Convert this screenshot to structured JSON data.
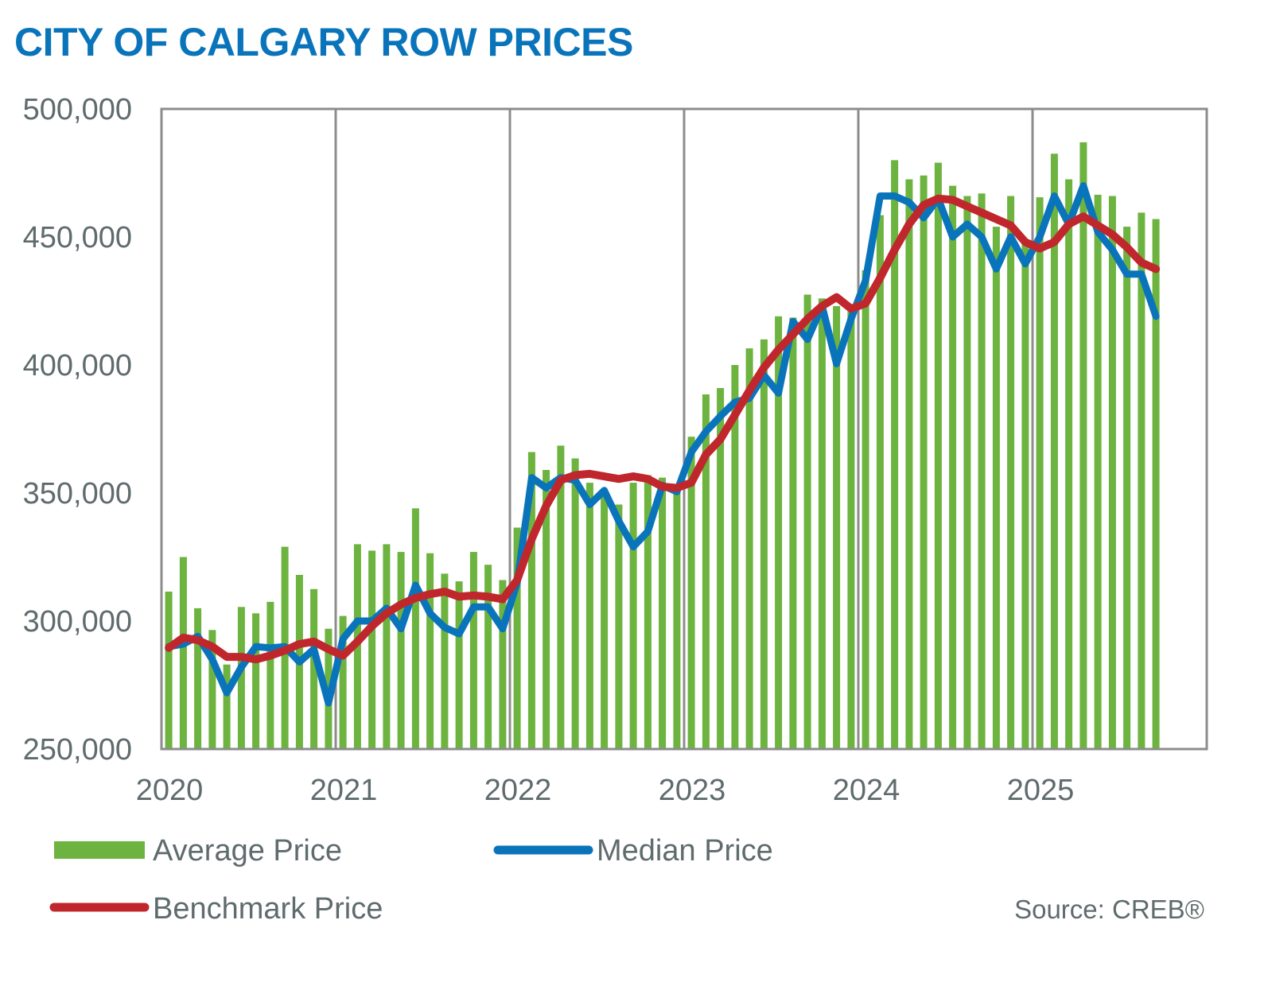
{
  "chart_data": {
    "type": "bar+line",
    "title": "CITY OF CALGARY ROW PRICES",
    "source": "Source: CREB®",
    "ylim": [
      250000,
      500000
    ],
    "y_ticks": [
      "500,000",
      "450,000",
      "400,000",
      "350,000",
      "300,000",
      "250,000"
    ],
    "y_tick_values": [
      500000,
      450000,
      400000,
      350000,
      300000,
      250000
    ],
    "x_ticks": [
      "2020",
      "2021",
      "2022",
      "2023",
      "2024",
      "2025"
    ],
    "start_year": 2020,
    "months_per_year": 12,
    "grid_x": true,
    "series": [
      {
        "name": "Average Price",
        "kind": "bar",
        "color": "#6db33f",
        "values": [
          311500,
          325000,
          305000,
          296500,
          283000,
          305500,
          303000,
          307500,
          329000,
          318000,
          312500,
          297000,
          302000,
          330000,
          327500,
          330000,
          327000,
          344000,
          326500,
          318500,
          315500,
          327000,
          322000,
          316000,
          336500,
          366000,
          359000,
          368500,
          363500,
          354000,
          351000,
          345500,
          354000,
          357000,
          356000,
          352500,
          372000,
          388500,
          391000,
          400000,
          406500,
          410000,
          419000,
          418500,
          427500,
          426000,
          423000,
          423500,
          437000,
          458500,
          480000,
          472500,
          474000,
          479000,
          470000,
          466000,
          467000,
          454000,
          466000,
          449000,
          465500,
          482500,
          472500,
          487000,
          466500,
          466000,
          454000,
          459500,
          457000
        ]
      },
      {
        "name": "Median Price",
        "kind": "line",
        "color": "#0a74bb",
        "values": [
          290000,
          291000,
          294000,
          285000,
          272000,
          282000,
          290000,
          289500,
          290000,
          284000,
          289000,
          268000,
          293000,
          300000,
          300000,
          305000,
          297000,
          314000,
          303000,
          297500,
          295000,
          305500,
          305500,
          297000,
          315000,
          356000,
          352000,
          356000,
          355000,
          345500,
          351000,
          339000,
          329000,
          335000,
          353000,
          350500,
          366000,
          374000,
          380000,
          385500,
          387000,
          396000,
          389000,
          417000,
          410000,
          423000,
          400500,
          418000,
          433000,
          466000,
          466000,
          463500,
          457500,
          465000,
          450000,
          455000,
          450000,
          437500,
          450000,
          439500,
          450000,
          466000,
          455000,
          470000,
          452000,
          445000,
          435500,
          435500,
          419000
        ]
      },
      {
        "name": "Benchmark Price",
        "kind": "line",
        "color": "#c0272d",
        "values": [
          289500,
          293500,
          292500,
          290000,
          286000,
          286000,
          285000,
          286500,
          288500,
          291000,
          292000,
          289000,
          286500,
          292000,
          298000,
          303000,
          306500,
          309000,
          310500,
          311500,
          309500,
          310000,
          309500,
          308500,
          316000,
          332000,
          345000,
          355000,
          357000,
          357500,
          356500,
          355500,
          356500,
          355500,
          352500,
          352000,
          354000,
          365000,
          371000,
          380500,
          390000,
          399000,
          406000,
          412000,
          418000,
          423000,
          426500,
          422000,
          424000,
          434000,
          445000,
          455000,
          462500,
          465000,
          464500,
          462000,
          459500,
          457000,
          454500,
          448000,
          445500,
          448000,
          455000,
          458000,
          454500,
          451000,
          446000,
          440000,
          437500
        ]
      }
    ],
    "legend": {
      "average": "Average Price",
      "median": "Median Price",
      "benchmark": "Benchmark Price"
    }
  }
}
